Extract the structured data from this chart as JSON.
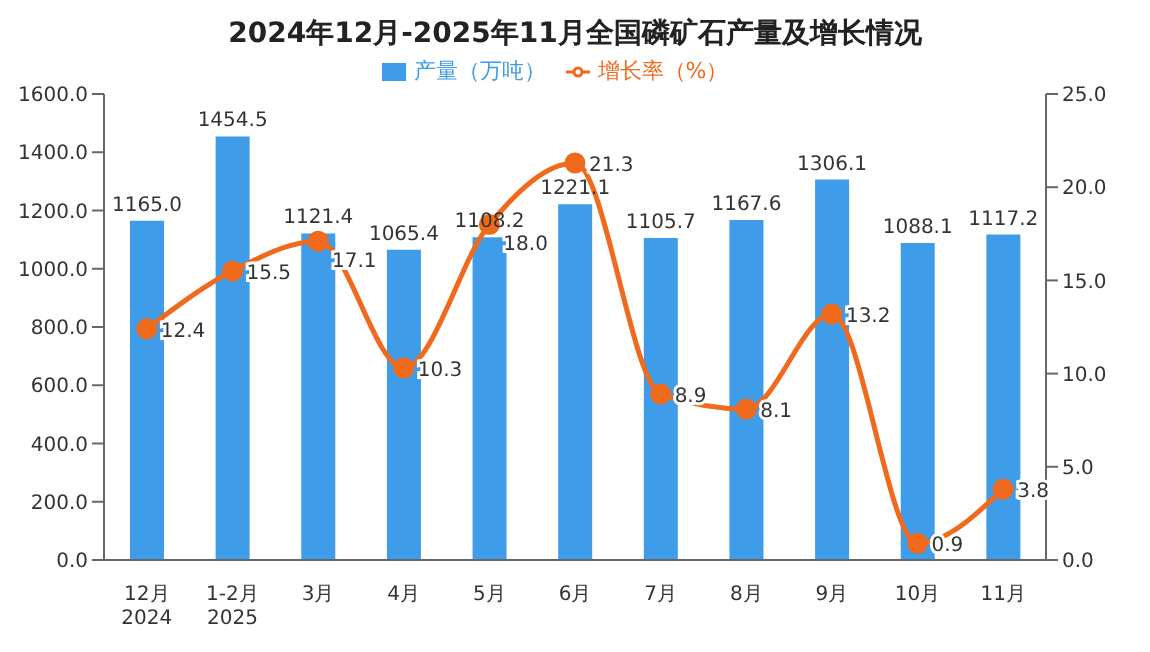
{
  "chart_data": {
    "type": "bar",
    "title": "2024年12月-2025年11月全国磷矿石产量及增长情况",
    "categories": [
      "12月\n2024",
      "1-2月\n2025",
      "3月",
      "4月",
      "5月",
      "6月",
      "7月",
      "8月",
      "9月",
      "10月",
      "11月"
    ],
    "series": [
      {
        "name": "产量（万吨）",
        "color": "#3f9ce8",
        "values": [
          1165.0,
          1454.5,
          1121.4,
          1065.4,
          1108.2,
          1221.1,
          1105.7,
          1167.6,
          1306.1,
          1088.1,
          1117.2
        ],
        "value_labels": [
          "1165.0",
          "1454.5",
          "1121.4",
          "1065.4",
          "1108.2",
          "1221.1",
          "1105.7",
          "1167.6",
          "1306.1",
          "1088.1",
          "1117.2"
        ]
      },
      {
        "name": "增长率（%）",
        "type": "line",
        "axis": "y2",
        "color": "#f06a1e",
        "values": [
          12.4,
          15.5,
          17.1,
          10.3,
          18.0,
          21.3,
          8.9,
          8.1,
          13.2,
          0.9,
          3.8
        ],
        "value_labels": [
          "12.4",
          "15.5",
          "17.1",
          "10.3",
          "18.0",
          "21.3",
          "8.9",
          "8.1",
          "13.2",
          "0.9",
          "3.8"
        ]
      }
    ],
    "ylim": [
      0,
      1600
    ],
    "yticks": [
      {
        "value": 0,
        "label": "0.0"
      },
      {
        "value": 200,
        "label": "200.0"
      },
      {
        "value": 400,
        "label": "400.0"
      },
      {
        "value": 600,
        "label": "600.0"
      },
      {
        "value": 800,
        "label": "800.0"
      },
      {
        "value": 1000,
        "label": "1000.0"
      },
      {
        "value": 1200,
        "label": "1200.0"
      },
      {
        "value": 1400,
        "label": "1400.0"
      },
      {
        "value": 1600,
        "label": "1600.0"
      }
    ],
    "y2lim": [
      0,
      25
    ],
    "y2ticks": [
      {
        "value": 0,
        "label": "0.0"
      },
      {
        "value": 5,
        "label": "5.0"
      },
      {
        "value": 10,
        "label": "10.0"
      },
      {
        "value": 15,
        "label": "15.0"
      },
      {
        "value": 20,
        "label": "20.0"
      },
      {
        "value": 25,
        "label": "25.0"
      }
    ],
    "legend": "top",
    "grid": false,
    "marker": "circle"
  }
}
